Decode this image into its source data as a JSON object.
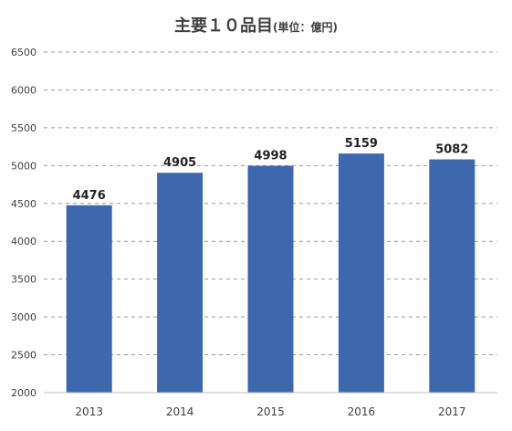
{
  "chart_data": {
    "type": "bar",
    "title": "主要１０品目",
    "title_unit": "(単位：億円)",
    "categories": [
      "2013",
      "2014",
      "2015",
      "2016",
      "2017"
    ],
    "values": [
      4476,
      4905,
      4998,
      5159,
      5082
    ],
    "ylim": [
      2000,
      6500
    ],
    "yticks": [
      2000,
      2500,
      3000,
      3500,
      4000,
      4500,
      5000,
      5500,
      6000,
      6500
    ],
    "grid": true,
    "grid_style": "dashed",
    "legend": "none",
    "bar_color": "#3D68AE",
    "xlabel": "",
    "ylabel": ""
  }
}
